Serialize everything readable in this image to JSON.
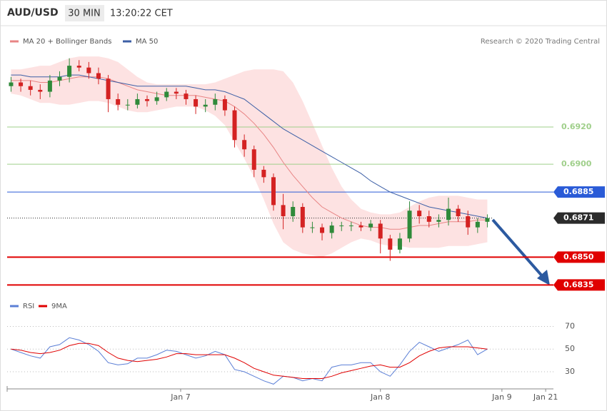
{
  "header": {
    "symbol": "AUD/USD",
    "interval": "30 MIN",
    "time": "13:20:22 CET",
    "credit": "Research © 2020 Trading Central"
  },
  "chart_data": [
    {
      "type": "candlestick",
      "open": [
        0.6942,
        0.6944,
        0.6942,
        0.694,
        0.6939,
        0.6945,
        0.6947,
        0.6953,
        0.6952,
        0.6949,
        0.6946,
        0.6935,
        0.6932,
        0.6932,
        0.6935,
        0.6934,
        0.6936,
        0.6939,
        0.6938,
        0.6935,
        0.6931,
        0.6932,
        0.6935,
        0.6929,
        0.6913,
        0.6908,
        0.6897,
        0.6893,
        0.6878,
        0.6872,
        0.6877,
        0.6866,
        0.6866,
        0.6863,
        0.6867,
        0.6867,
        0.6867,
        0.6866,
        0.6868,
        0.686,
        0.6854,
        0.686,
        0.6875,
        0.6872,
        0.6869,
        0.687,
        0.6876,
        0.6872,
        0.6866,
        0.6869
      ],
      "high": [
        0.6947,
        0.6946,
        0.6945,
        0.6943,
        0.6948,
        0.695,
        0.6957,
        0.6956,
        0.6955,
        0.6952,
        0.6948,
        0.6938,
        0.6935,
        0.6938,
        0.6937,
        0.6939,
        0.6941,
        0.6941,
        0.694,
        0.6937,
        0.6935,
        0.6938,
        0.6937,
        0.6931,
        0.6916,
        0.691,
        0.6899,
        0.6895,
        0.6884,
        0.688,
        0.6879,
        0.6869,
        0.6868,
        0.6869,
        0.6869,
        0.6869,
        0.6869,
        0.687,
        0.687,
        0.6862,
        0.6863,
        0.688,
        0.6878,
        0.6875,
        0.6873,
        0.6882,
        0.6878,
        0.6875,
        0.6871,
        0.6873
      ],
      "low": [
        0.6939,
        0.6939,
        0.6937,
        0.6935,
        0.6936,
        0.6942,
        0.6944,
        0.695,
        0.6946,
        0.6943,
        0.6928,
        0.6929,
        0.6929,
        0.693,
        0.6931,
        0.6932,
        0.6934,
        0.6935,
        0.6932,
        0.6927,
        0.6928,
        0.6929,
        0.6926,
        0.6909,
        0.6904,
        0.6893,
        0.689,
        0.6875,
        0.6865,
        0.6869,
        0.6863,
        0.6863,
        0.6859,
        0.686,
        0.6864,
        0.6864,
        0.6864,
        0.6864,
        0.6852,
        0.6848,
        0.6852,
        0.6858,
        0.6868,
        0.6866,
        0.6866,
        0.6867,
        0.6869,
        0.6862,
        0.6863,
        0.6866
      ],
      "close": [
        0.6944,
        0.6942,
        0.694,
        0.6939,
        0.6945,
        0.6947,
        0.6953,
        0.6952,
        0.6949,
        0.6946,
        0.6935,
        0.6932,
        0.6932,
        0.6935,
        0.6934,
        0.6936,
        0.6939,
        0.6938,
        0.6935,
        0.6931,
        0.6932,
        0.6935,
        0.6929,
        0.6913,
        0.6908,
        0.6897,
        0.6893,
        0.6878,
        0.6872,
        0.6877,
        0.6866,
        0.6866,
        0.6863,
        0.6867,
        0.6867,
        0.6867,
        0.6866,
        0.6868,
        0.686,
        0.6854,
        0.686,
        0.6875,
        0.6872,
        0.6869,
        0.687,
        0.6876,
        0.6872,
        0.6866,
        0.6869,
        0.6871
      ],
      "up_color": "#2f8a3a",
      "down_color": "#d42222",
      "band_color": "#fde2e2",
      "series": [
        {
          "name": "MA 20 + Bollinger Bands",
          "color": "#e88585",
          "values": [
            0.6945,
            0.6945,
            0.6945,
            0.6944,
            0.6944,
            0.6945,
            0.6946,
            0.6947,
            0.6947,
            0.6947,
            0.6946,
            0.6944,
            0.6942,
            0.694,
            0.6939,
            0.6938,
            0.6937,
            0.6937,
            0.6937,
            0.6937,
            0.6936,
            0.6935,
            0.6934,
            0.6931,
            0.6927,
            0.6922,
            0.6916,
            0.6909,
            0.6901,
            0.6894,
            0.6888,
            0.6882,
            0.6877,
            0.6874,
            0.6871,
            0.6869,
            0.6867,
            0.6866,
            0.6866,
            0.6865,
            0.6865,
            0.6866,
            0.6867,
            0.6867,
            0.6868,
            0.6869,
            0.6869,
            0.6869,
            0.687,
            0.687
          ],
          "upper": [
            0.6951,
            0.6951,
            0.6952,
            0.6953,
            0.6953,
            0.6955,
            0.6957,
            0.6958,
            0.6958,
            0.6958,
            0.6957,
            0.6955,
            0.6951,
            0.6947,
            0.6944,
            0.6943,
            0.6943,
            0.6943,
            0.6943,
            0.6943,
            0.6943,
            0.6944,
            0.6946,
            0.6948,
            0.695,
            0.6951,
            0.6951,
            0.6951,
            0.695,
            0.6944,
            0.6934,
            0.6922,
            0.691,
            0.6898,
            0.6888,
            0.6881,
            0.6876,
            0.6874,
            0.6873,
            0.6873,
            0.6874,
            0.6877,
            0.688,
            0.6882,
            0.6883,
            0.6883,
            0.6883,
            0.6882,
            0.6881,
            0.6881
          ],
          "lower": [
            0.6938,
            0.6937,
            0.6935,
            0.6933,
            0.6933,
            0.6932,
            0.6932,
            0.6933,
            0.6934,
            0.6934,
            0.6933,
            0.6931,
            0.6929,
            0.6928,
            0.6928,
            0.6929,
            0.693,
            0.6931,
            0.6931,
            0.6931,
            0.6929,
            0.6926,
            0.6921,
            0.6912,
            0.6903,
            0.6893,
            0.6881,
            0.6868,
            0.6858,
            0.6854,
            0.6852,
            0.6851,
            0.685,
            0.6852,
            0.6855,
            0.6858,
            0.686,
            0.6859,
            0.6857,
            0.6856,
            0.6856,
            0.6855,
            0.6855,
            0.6855,
            0.6855,
            0.6856,
            0.6856,
            0.6856,
            0.6857,
            0.6858
          ]
        },
        {
          "name": "MA 50",
          "color": "#3c5fa6",
          "values": [
            0.6948,
            0.6948,
            0.6947,
            0.6947,
            0.6947,
            0.6947,
            0.6948,
            0.6948,
            0.6947,
            0.6946,
            0.6945,
            0.6944,
            0.6943,
            0.6942,
            0.6942,
            0.6942,
            0.6942,
            0.6942,
            0.6942,
            0.6941,
            0.694,
            0.694,
            0.6939,
            0.6937,
            0.6935,
            0.6931,
            0.6927,
            0.6923,
            0.6919,
            0.6916,
            0.6913,
            0.691,
            0.6907,
            0.6904,
            0.6901,
            0.6898,
            0.6895,
            0.6891,
            0.6888,
            0.6885,
            0.6883,
            0.6881,
            0.6879,
            0.6877,
            0.6876,
            0.6875,
            0.6874,
            0.6873,
            0.6872,
            0.6871
          ]
        }
      ],
      "levels": [
        {
          "value": 0.692,
          "label": "0.6920",
          "color": "#9fcf8a",
          "style": "thin",
          "badge": false
        },
        {
          "value": 0.69,
          "label": "0.6900",
          "color": "#9fcf8a",
          "style": "thin",
          "badge": false
        },
        {
          "value": 0.6885,
          "label": "0.6885",
          "color": "#2a5bd7",
          "style": "thin",
          "badge": true
        },
        {
          "value": 0.6871,
          "label": "0.6871",
          "color": "#2b2b2b",
          "style": "dotted",
          "badge": true
        },
        {
          "value": 0.685,
          "label": "0.6850",
          "color": "#e00000",
          "style": "heavy",
          "badge": true
        },
        {
          "value": 0.6835,
          "label": "0.6835",
          "color": "#e00000",
          "style": "heavy",
          "badge": true
        }
      ],
      "xlim": [
        -0.4,
        55.8
      ],
      "ylim": [
        0.6829,
        0.6973
      ]
    },
    {
      "type": "line",
      "series": [
        {
          "name": "RSI",
          "color": "#5b7fd6",
          "values": [
            50,
            47,
            44,
            42,
            52,
            54,
            60,
            58,
            54,
            48,
            38,
            36,
            37,
            42,
            42,
            45,
            49,
            48,
            45,
            42,
            44,
            48,
            45,
            32,
            30,
            26,
            22,
            19,
            26,
            25,
            22,
            24,
            22,
            34,
            36,
            36,
            38,
            38,
            30,
            26,
            36,
            48,
            56,
            52,
            48,
            51,
            54,
            58,
            45,
            50
          ]
        },
        {
          "name": "9MA",
          "color": "#e00000",
          "values": [
            50,
            49,
            47,
            46,
            47,
            49,
            53,
            55,
            55,
            53,
            47,
            42,
            40,
            39,
            40,
            41,
            43,
            46,
            46,
            45,
            45,
            45,
            45,
            42,
            38,
            33,
            30,
            27,
            26,
            25,
            24,
            24,
            24,
            26,
            29,
            31,
            33,
            35,
            36,
            34,
            34,
            38,
            44,
            48,
            51,
            52,
            52,
            52,
            51,
            50
          ]
        }
      ],
      "xlim": [
        -0.4,
        55.8
      ],
      "ylim": [
        18,
        81
      ],
      "yticks": [
        30,
        50,
        70
      ],
      "grid": true,
      "xticks": [
        {
          "value": 17.45,
          "label": "Jan 7"
        },
        {
          "value": 38,
          "label": "Jan 8"
        },
        {
          "value": 50.5,
          "label": "Jan 9"
        },
        {
          "value": 55,
          "label": "Jan 21"
        }
      ]
    }
  ]
}
